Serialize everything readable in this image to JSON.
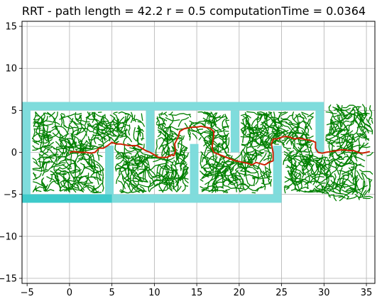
{
  "chart_data": {
    "type": "line",
    "title": "RRT - path length = 42.2 r = 0.5 computationTime = 0.0364",
    "xlabel": "",
    "ylabel": "",
    "xlim": [
      -5.6,
      36.0
    ],
    "ylim": [
      -15.6,
      15.6
    ],
    "x_ticks": [
      -5,
      0,
      5,
      10,
      15,
      20,
      25,
      30,
      35
    ],
    "y_ticks": [
      15,
      10,
      5,
      0,
      -5,
      -10,
      -15
    ],
    "grid": true,
    "colors": {
      "walls": "#7fdcdc",
      "wall_dark": "#3ecaca",
      "tree": "#008000",
      "path": "#cc2200",
      "grid": "#b0b0b0"
    },
    "walls": [
      {
        "x": [
          -5.6,
          30.0
        ],
        "y": [
          5.0,
          6.0
        ]
      },
      {
        "x": [
          -5.6,
          25.0
        ],
        "y": [
          -6.0,
          -5.0
        ]
      },
      {
        "x": [
          -5.6,
          -4.6
        ],
        "y": [
          -6.0,
          6.0
        ]
      },
      {
        "x": [
          4.2,
          5.2
        ],
        "y": [
          -5.0,
          0.8
        ]
      },
      {
        "x": [
          9.0,
          10.0
        ],
        "y": [
          0.0,
          5.0
        ]
      },
      {
        "x": [
          14.2,
          15.2
        ],
        "y": [
          -5.0,
          1.0
        ]
      },
      {
        "x": [
          19.0,
          20.0
        ],
        "y": [
          0.0,
          5.0
        ]
      },
      {
        "x": [
          24.0,
          25.0
        ],
        "y": [
          -5.0,
          0.8
        ]
      },
      {
        "x": [
          29.0,
          30.0
        ],
        "y": [
          0.0,
          5.0
        ]
      }
    ],
    "series": [
      {
        "x": [
          0,
          0.5,
          1.2,
          2.0,
          2.5,
          3.0,
          3.5,
          4.0,
          4.5,
          5.0,
          5.5,
          6.0,
          7.0,
          8.0,
          8.5,
          9.0,
          9.5,
          10.0,
          10.5,
          11.0,
          11.5,
          12.0,
          12.3,
          12.5,
          12.4,
          12.8,
          13.0,
          13.5,
          14.0,
          14.5,
          15.0,
          15.5,
          16.0,
          16.5,
          17.0,
          17.0,
          16.8,
          17.0,
          17.5,
          18.5,
          19.5,
          20.5,
          21.0,
          21.5,
          22.0,
          23.0,
          23.5,
          24.0,
          24.0,
          23.8,
          24.0,
          24.5,
          25.0,
          25.5,
          26.0,
          26.5,
          27.0,
          27.5,
          28.0,
          28.5,
          29.0,
          29.0,
          29.3,
          29.8,
          30.2,
          30.8,
          31.5,
          32.0,
          32.5,
          33.0,
          33.5,
          34.0,
          34.5,
          35.0,
          35.4
        ],
        "y": [
          0,
          0.1,
          0.0,
          0.0,
          -0.1,
          0.0,
          0.5,
          0.5,
          0.8,
          1.2,
          1.0,
          1.0,
          0.8,
          0.8,
          0.5,
          0.2,
          0.0,
          -0.3,
          -0.6,
          -0.6,
          -0.6,
          -0.3,
          -0.4,
          0.2,
          1.0,
          1.8,
          2.5,
          2.8,
          2.9,
          3.0,
          3.0,
          3.1,
          3.0,
          2.9,
          2.5,
          2.0,
          0.5,
          0.0,
          -0.2,
          -0.6,
          -1.0,
          -1.2,
          -1.3,
          -1.5,
          -1.2,
          -1.5,
          -1.2,
          -1.0,
          0.0,
          1.0,
          1.6,
          1.6,
          1.8,
          1.9,
          1.8,
          1.6,
          1.7,
          1.6,
          1.5,
          1.4,
          1.2,
          0.5,
          0.0,
          -0.1,
          0.0,
          0.1,
          0.2,
          0.3,
          0.3,
          0.2,
          0.2,
          0.0,
          -0.1,
          0.0,
          0.1
        ]
      }
    ]
  }
}
